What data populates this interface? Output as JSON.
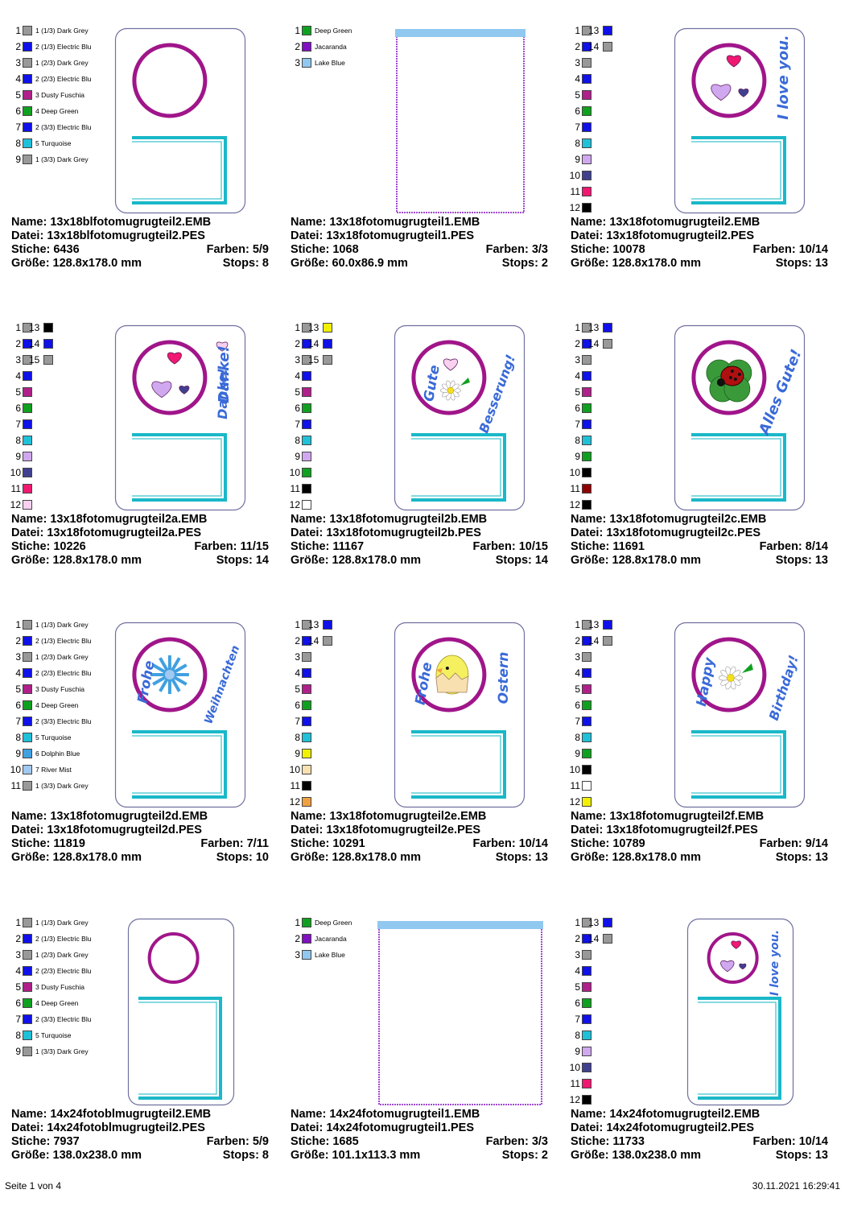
{
  "colors": {
    "dark_grey": "#999999",
    "electric_blue": "#1010e8",
    "dusty_fuchsia": "#b0208a",
    "deep_green": "#10a020",
    "turquoise": "#20c0d8",
    "dolphin_blue": "#40a0e0",
    "river_mist": "#a0c8f0",
    "jacaranda": "#8010c0",
    "lake_blue": "#90c8f0",
    "black": "#000000",
    "yellow": "#f0f000",
    "lilac": "#d0a8f0",
    "indigo": "#404090",
    "pink": "#f01870",
    "light_pink": "#f8d0f0",
    "dark_red": "#900000",
    "peach": "#f8e0b0",
    "orange": "#f0a040",
    "white": "#ffffff",
    "frame_purple": "#a0158a",
    "frame_teal": "#1ab8c8"
  },
  "designs": [
    {
      "name": "Name: 13x18blfotomugrugteil2.EMB",
      "datei": "Datei: 13x18blfotomugrugteil2.PES",
      "stiche": "Stiche: 6436",
      "farben": "Farben: 5/9",
      "groesse": "Größe: 128.8x178.0 mm",
      "stops": "Stops: 8",
      "swatches": [
        {
          "n": "1",
          "c": "dark_grey",
          "label": "1 (1/3) Dark Grey"
        },
        {
          "n": "2",
          "c": "electric_blue",
          "label": "2 (1/3) Electric Blu"
        },
        {
          "n": "3",
          "c": "dark_grey",
          "label": "1 (2/3) Dark Grey"
        },
        {
          "n": "4",
          "c": "electric_blue",
          "label": "2 (2/3) Electric Blu"
        },
        {
          "n": "5",
          "c": "dusty_fuchsia",
          "label": "3 Dusty Fuschia"
        },
        {
          "n": "6",
          "c": "deep_green",
          "label": "4 Deep Green"
        },
        {
          "n": "7",
          "c": "electric_blue",
          "label": "2 (3/3) Electric Blu"
        },
        {
          "n": "8",
          "c": "turquoise",
          "label": "5 Turquoise"
        },
        {
          "n": "9",
          "c": "dark_grey",
          "label": "1 (3/3) Dark Grey"
        }
      ],
      "motif": "none",
      "text1": "",
      "text2": ""
    },
    {
      "name": "Name: 13x18fotomugrugteil1.EMB",
      "datei": "Datei: 13x18fotomugrugteil1.PES",
      "stiche": "Stiche: 1068",
      "farben": "Farben: 3/3",
      "groesse": "Größe: 60.0x86.9 mm",
      "stops": "Stops: 2",
      "swatches": [
        {
          "n": "1",
          "c": "deep_green",
          "label": "Deep Green"
        },
        {
          "n": "2",
          "c": "jacaranda",
          "label": "Jacaranda"
        },
        {
          "n": "3",
          "c": "lake_blue",
          "label": "Lake Blue"
        }
      ],
      "motif": "pocket",
      "text1": "",
      "text2": ""
    },
    {
      "name": "Name: 13x18fotomugrugteil2.EMB",
      "datei": "Datei: 13x18fotomugrugteil2.PES",
      "stiche": "Stiche: 10078",
      "farben": "Farben: 10/14",
      "groesse": "Größe: 128.8x178.0 mm",
      "stops": "Stops: 13",
      "swatches": [
        {
          "n": "1",
          "c": "dark_grey",
          "n2": "13",
          "c2": "electric_blue"
        },
        {
          "n": "2",
          "c": "electric_blue",
          "n2": "14",
          "c2": "dark_grey"
        },
        {
          "n": "3",
          "c": "dark_grey"
        },
        {
          "n": "4",
          "c": "electric_blue"
        },
        {
          "n": "5",
          "c": "dusty_fuchsia"
        },
        {
          "n": "6",
          "c": "deep_green"
        },
        {
          "n": "7",
          "c": "electric_blue"
        },
        {
          "n": "8",
          "c": "turquoise"
        },
        {
          "n": "9",
          "c": "lilac"
        },
        {
          "n": "10",
          "c": "indigo"
        },
        {
          "n": "11",
          "c": "pink"
        },
        {
          "n": "12",
          "c": "black"
        }
      ],
      "motif": "hearts",
      "text1": "I love you.",
      "text2": ""
    },
    {
      "name": "Name: 13x18fotomugrugteil2a.EMB",
      "datei": "Datei: 13x18fotomugrugteil2a.PES",
      "stiche": "Stiche: 10226",
      "farben": "Farben: 11/15",
      "groesse": "Größe: 128.8x178.0 mm",
      "stops": "Stops: 14",
      "swatches": [
        {
          "n": "1",
          "c": "dark_grey",
          "n2": "13",
          "c2": "black"
        },
        {
          "n": "2",
          "c": "electric_blue",
          "n2": "14",
          "c2": "electric_blue"
        },
        {
          "n": "3",
          "c": "dark_grey",
          "n2": "15",
          "c2": "dark_grey"
        },
        {
          "n": "4",
          "c": "electric_blue"
        },
        {
          "n": "5",
          "c": "dusty_fuchsia"
        },
        {
          "n": "6",
          "c": "deep_green"
        },
        {
          "n": "7",
          "c": "electric_blue"
        },
        {
          "n": "8",
          "c": "turquoise"
        },
        {
          "n": "9",
          "c": "lilac"
        },
        {
          "n": "10",
          "c": "indigo"
        },
        {
          "n": "11",
          "c": "pink"
        },
        {
          "n": "12",
          "c": "light_pink"
        }
      ],
      "motif": "hearts",
      "text1": "Danke!",
      "text2": ""
    },
    {
      "name": "Name: 13x18fotomugrugteil2b.EMB",
      "datei": "Datei: 13x18fotomugrugteil2b.PES",
      "stiche": "Stiche: 11167",
      "farben": "Farben: 10/15",
      "groesse": "Größe: 128.8x178.0 mm",
      "stops": "Stops: 14",
      "swatches": [
        {
          "n": "1",
          "c": "dark_grey",
          "n2": "13",
          "c2": "yellow"
        },
        {
          "n": "2",
          "c": "electric_blue",
          "n2": "14",
          "c2": "electric_blue"
        },
        {
          "n": "3",
          "c": "dark_grey",
          "n2": "15",
          "c2": "dark_grey"
        },
        {
          "n": "4",
          "c": "electric_blue"
        },
        {
          "n": "5",
          "c": "dusty_fuchsia"
        },
        {
          "n": "6",
          "c": "deep_green"
        },
        {
          "n": "7",
          "c": "electric_blue"
        },
        {
          "n": "8",
          "c": "turquoise"
        },
        {
          "n": "9",
          "c": "lilac"
        },
        {
          "n": "10",
          "c": "deep_green"
        },
        {
          "n": "11",
          "c": "black"
        },
        {
          "n": "12",
          "c": "white"
        }
      ],
      "motif": "flower_heart",
      "text1": "Gute",
      "text2": "Besserung!"
    },
    {
      "name": "Name: 13x18fotomugrugteil2c.EMB",
      "datei": "Datei: 13x18fotomugrugteil2c.PES",
      "stiche": "Stiche: 11691",
      "farben": "Farben: 8/14",
      "groesse": "Größe: 128.8x178.0 mm",
      "stops": "Stops: 13",
      "swatches": [
        {
          "n": "1",
          "c": "dark_grey",
          "n2": "13",
          "c2": "electric_blue"
        },
        {
          "n": "2",
          "c": "electric_blue",
          "n2": "14",
          "c2": "dark_grey"
        },
        {
          "n": "3",
          "c": "dark_grey"
        },
        {
          "n": "4",
          "c": "electric_blue"
        },
        {
          "n": "5",
          "c": "dusty_fuchsia"
        },
        {
          "n": "6",
          "c": "deep_green"
        },
        {
          "n": "7",
          "c": "electric_blue"
        },
        {
          "n": "8",
          "c": "turquoise"
        },
        {
          "n": "9",
          "c": "deep_green"
        },
        {
          "n": "10",
          "c": "black"
        },
        {
          "n": "11",
          "c": "dark_red"
        },
        {
          "n": "12",
          "c": "black"
        }
      ],
      "motif": "ladybug",
      "text1": "Alles Gute!",
      "text2": ""
    },
    {
      "name": "Name: 13x18fotomugrugteil2d.EMB",
      "datei": "Datei: 13x18fotomugrugteil2d.PES",
      "stiche": "Stiche: 11819",
      "farben": "Farben: 7/11",
      "groesse": "Größe: 128.8x178.0 mm",
      "stops": "Stops: 10",
      "swatches": [
        {
          "n": "1",
          "c": "dark_grey",
          "label": "1 (1/3) Dark Grey"
        },
        {
          "n": "2",
          "c": "electric_blue",
          "label": "2 (1/3) Electric Blu"
        },
        {
          "n": "3",
          "c": "dark_grey",
          "label": "1 (2/3) Dark Grey"
        },
        {
          "n": "4",
          "c": "electric_blue",
          "label": "2 (2/3) Electric Blu"
        },
        {
          "n": "5",
          "c": "dusty_fuchsia",
          "label": "3 Dusty Fuschia"
        },
        {
          "n": "6",
          "c": "deep_green",
          "label": "4 Deep Green"
        },
        {
          "n": "7",
          "c": "electric_blue",
          "label": "2 (3/3) Electric Blu"
        },
        {
          "n": "8",
          "c": "turquoise",
          "label": "5 Turquoise"
        },
        {
          "n": "9",
          "c": "dolphin_blue",
          "label": "6 Dolphin Blue"
        },
        {
          "n": "10",
          "c": "river_mist",
          "label": "7 River Mist"
        },
        {
          "n": "11",
          "c": "dark_grey",
          "label": "1 (3/3) Dark Grey"
        }
      ],
      "motif": "snowflake",
      "text1": "Frohe",
      "text2": "Weihnachten"
    },
    {
      "name": "Name: 13x18fotomugrugteil2e.EMB",
      "datei": "Datei: 13x18fotomugrugteil2e.PES",
      "stiche": "Stiche: 10291",
      "farben": "Farben: 10/14",
      "groesse": "Größe: 128.8x178.0 mm",
      "stops": "Stops: 13",
      "swatches": [
        {
          "n": "1",
          "c": "dark_grey",
          "n2": "13",
          "c2": "electric_blue"
        },
        {
          "n": "2",
          "c": "electric_blue",
          "n2": "14",
          "c2": "dark_grey"
        },
        {
          "n": "3",
          "c": "dark_grey"
        },
        {
          "n": "4",
          "c": "electric_blue"
        },
        {
          "n": "5",
          "c": "dusty_fuchsia"
        },
        {
          "n": "6",
          "c": "deep_green"
        },
        {
          "n": "7",
          "c": "electric_blue"
        },
        {
          "n": "8",
          "c": "turquoise"
        },
        {
          "n": "9",
          "c": "yellow"
        },
        {
          "n": "10",
          "c": "peach"
        },
        {
          "n": "11",
          "c": "black"
        },
        {
          "n": "12",
          "c": "orange"
        }
      ],
      "motif": "chick",
      "text1": "Frohe",
      "text2": "Ostern"
    },
    {
      "name": "Name: 13x18fotomugrugteil2f.EMB",
      "datei": "Datei: 13x18fotomugrugteil2f.PES",
      "stiche": "Stiche: 10789",
      "farben": "Farben: 9/14",
      "groesse": "Größe: 128.8x178.0 mm",
      "stops": "Stops: 13",
      "swatches": [
        {
          "n": "1",
          "c": "dark_grey",
          "n2": "13",
          "c2": "electric_blue"
        },
        {
          "n": "2",
          "c": "electric_blue",
          "n2": "14",
          "c2": "dark_grey"
        },
        {
          "n": "3",
          "c": "dark_grey"
        },
        {
          "n": "4",
          "c": "electric_blue"
        },
        {
          "n": "5",
          "c": "dusty_fuchsia"
        },
        {
          "n": "6",
          "c": "deep_green"
        },
        {
          "n": "7",
          "c": "electric_blue"
        },
        {
          "n": "8",
          "c": "turquoise"
        },
        {
          "n": "9",
          "c": "deep_green"
        },
        {
          "n": "10",
          "c": "black"
        },
        {
          "n": "11",
          "c": "white"
        },
        {
          "n": "12",
          "c": "yellow"
        }
      ],
      "motif": "flower",
      "text1": "Happy",
      "text2": "Birthday!"
    },
    {
      "name": "Name: 14x24fotoblmugrugteil2.EMB",
      "datei": "Datei: 14x24fotoblmugrugteil2.PES",
      "stiche": "Stiche: 7937",
      "farben": "Farben: 5/9",
      "groesse": "Größe: 138.0x238.0 mm",
      "stops": "Stops: 8",
      "swatches": [
        {
          "n": "1",
          "c": "dark_grey",
          "label": "1 (1/3) Dark Grey"
        },
        {
          "n": "2",
          "c": "electric_blue",
          "label": "2 (1/3) Electric Blu"
        },
        {
          "n": "3",
          "c": "dark_grey",
          "label": "1 (2/3) Dark Grey"
        },
        {
          "n": "4",
          "c": "electric_blue",
          "label": "2 (2/3) Electric Blu"
        },
        {
          "n": "5",
          "c": "dusty_fuchsia",
          "label": "3 Dusty Fuschia"
        },
        {
          "n": "6",
          "c": "deep_green",
          "label": "4 Deep Green"
        },
        {
          "n": "7",
          "c": "electric_blue",
          "label": "2 (3/3) Electric Blu"
        },
        {
          "n": "8",
          "c": "turquoise",
          "label": "5 Turquoise"
        },
        {
          "n": "9",
          "c": "dark_grey",
          "label": "1 (3/3) Dark Grey"
        }
      ],
      "motif": "none_small",
      "text1": "",
      "text2": ""
    },
    {
      "name": "Name: 14x24fotomugrugteil1.EMB",
      "datei": "Datei: 14x24fotomugrugteil1.PES",
      "stiche": "Stiche: 1685",
      "farben": "Farben: 3/3",
      "groesse": "Größe: 101.1x113.3 mm",
      "stops": "Stops: 2",
      "swatches": [
        {
          "n": "1",
          "c": "deep_green",
          "label": "Deep Green"
        },
        {
          "n": "2",
          "c": "jacaranda",
          "label": "Jacaranda"
        },
        {
          "n": "3",
          "c": "lake_blue",
          "label": "Lake Blue"
        }
      ],
      "motif": "pocket_wide",
      "text1": "",
      "text2": ""
    },
    {
      "name": "Name: 14x24fotomugrugteil2.EMB",
      "datei": "Datei: 14x24fotomugrugteil2.PES",
      "stiche": "Stiche: 11733",
      "farben": "Farben: 10/14",
      "groesse": "Größe: 138.0x238.0 mm",
      "stops": "Stops: 13",
      "swatches": [
        {
          "n": "1",
          "c": "dark_grey",
          "n2": "13",
          "c2": "electric_blue"
        },
        {
          "n": "2",
          "c": "electric_blue",
          "n2": "14",
          "c2": "dark_grey"
        },
        {
          "n": "3",
          "c": "dark_grey"
        },
        {
          "n": "4",
          "c": "electric_blue"
        },
        {
          "n": "5",
          "c": "dusty_fuchsia"
        },
        {
          "n": "6",
          "c": "deep_green"
        },
        {
          "n": "7",
          "c": "electric_blue"
        },
        {
          "n": "8",
          "c": "turquoise"
        },
        {
          "n": "9",
          "c": "lilac"
        },
        {
          "n": "10",
          "c": "indigo"
        },
        {
          "n": "11",
          "c": "pink"
        },
        {
          "n": "12",
          "c": "black"
        }
      ],
      "motif": "hearts_small",
      "text1": "I love you.",
      "text2": ""
    }
  ],
  "footer": {
    "page": "Seite 1 von 4",
    "timestamp": "30.11.2021 16:29:41"
  }
}
